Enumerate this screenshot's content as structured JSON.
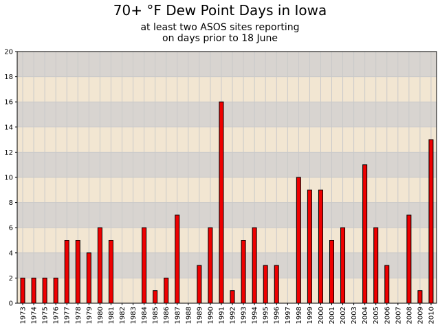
{
  "chart_data": {
    "type": "bar",
    "title": "70+ °F Dew Point Days in Iowa",
    "subtitle": [
      "at least two ASOS sites reporting",
      "on days prior to 18 June"
    ],
    "xlabel": "",
    "ylabel": "",
    "ylim": [
      0,
      20
    ],
    "yticks": [
      0,
      2,
      4,
      6,
      8,
      10,
      12,
      14,
      16,
      18,
      20
    ],
    "grid": true,
    "legend": "none",
    "categories": [
      "1973",
      "1974",
      "1975",
      "1976",
      "1977",
      "1978",
      "1979",
      "1980",
      "1981",
      "1982",
      "1983",
      "1984",
      "1985",
      "1986",
      "1987",
      "1988",
      "1989",
      "1990",
      "1991",
      "1992",
      "1993",
      "1994",
      "1995",
      "1996",
      "1997",
      "1998",
      "1999",
      "2000",
      "2001",
      "2002",
      "2003",
      "2004",
      "2005",
      "2006",
      "2007",
      "2008",
      "2009",
      "2010"
    ],
    "values": [
      2,
      2,
      2,
      2,
      5,
      5,
      4,
      6,
      5,
      0,
      0,
      6,
      1,
      2,
      7,
      0,
      3,
      6,
      16,
      1,
      5,
      6,
      3,
      3,
      0,
      10,
      9,
      9,
      5,
      6,
      0,
      11,
      6,
      3,
      0,
      7,
      1,
      13
    ],
    "colors": {
      "bar_fill": "#ee0000",
      "bar_stroke": "#000000",
      "band_dark": "#d8d4d0",
      "band_light": "#f2e6d2",
      "grid_line": "#c9c9c9"
    }
  }
}
